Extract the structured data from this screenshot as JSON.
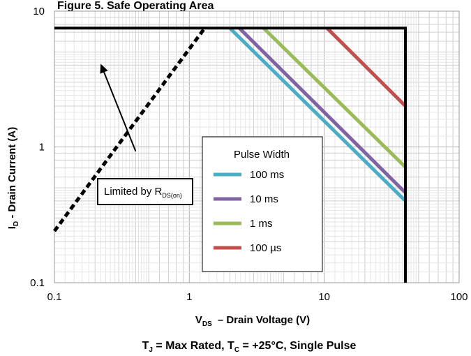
{
  "chart_data": {
    "type": "line",
    "title": "Figure 5. Safe Operating Area",
    "xlabel_main": "V",
    "xlabel_sub": "DS",
    "xlabel_rest": "– Drain Voltage (V)",
    "ylabel_main": "I",
    "ylabel_sub": "D",
    "ylabel_rest": " - Drain Current (A)",
    "caption": {
      "t": "T",
      "tj_sub": "J",
      "mid": " = Max Rated, T",
      "tc_sub": "C",
      "rest": " =  +25°C, Single Pulse"
    },
    "x_scale": "log",
    "y_scale": "log",
    "xlim": [
      0.1,
      100
    ],
    "ylim": [
      0.1,
      10
    ],
    "x_ticks": [
      "0.1",
      "1",
      "10",
      "100"
    ],
    "y_ticks": [
      "0.1",
      "1",
      "10"
    ],
    "grid": true,
    "boundary": {
      "current_limit_A": 7.5,
      "voltage_limit_V": 40
    },
    "rds_limit_line": {
      "x": [
        0.1,
        1.3
      ],
      "y": [
        0.24,
        7.5
      ]
    },
    "legend": {
      "title": "Pulse Width",
      "placement": "center"
    },
    "series": [
      {
        "name": "100 ms",
        "color": "#4bacc6",
        "x": [
          2.0,
          40
        ],
        "y": [
          7.5,
          0.4
        ]
      },
      {
        "name": "10 ms",
        "color": "#8064a2",
        "x": [
          2.35,
          40
        ],
        "y": [
          7.5,
          0.46
        ]
      },
      {
        "name": "1 ms",
        "color": "#9bbb59",
        "x": [
          3.55,
          40
        ],
        "y": [
          7.5,
          0.71
        ]
      },
      {
        "name": "100 µs",
        "color": "#c0504d",
        "x": [
          10.5,
          40
        ],
        "y": [
          7.5,
          2.0
        ]
      }
    ],
    "annotation": {
      "text_main": "Limited by R",
      "text_sub": "DS(on)",
      "arrow_tip": [
        0.22,
        4.1
      ],
      "arrow_tail": [
        0.4,
        0.93
      ]
    }
  }
}
